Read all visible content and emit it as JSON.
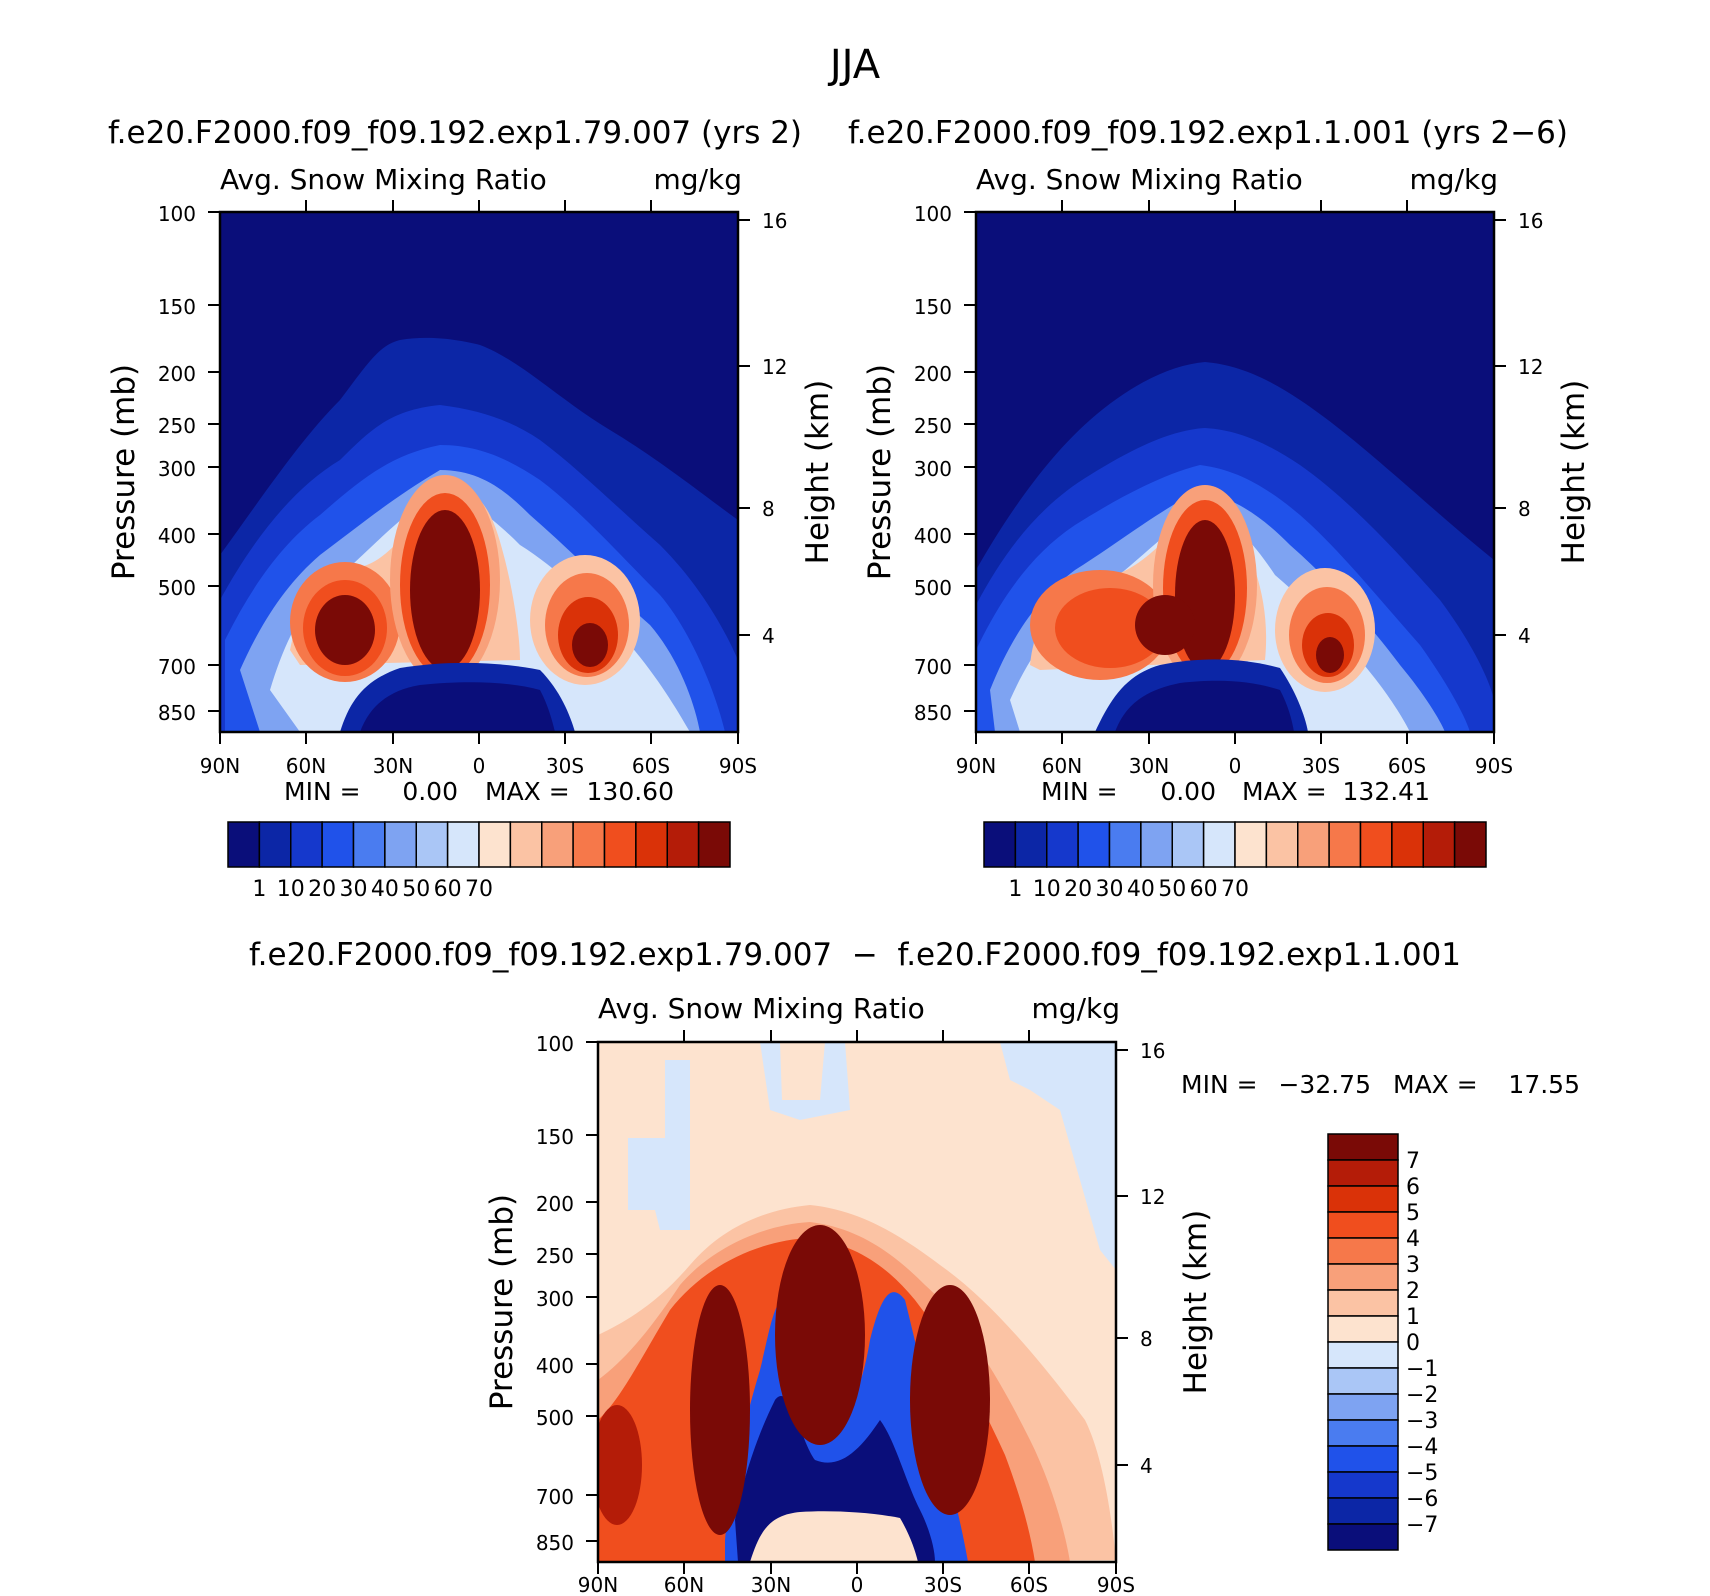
{
  "figure_title": "JJA",
  "diff_title": "f.e20.F2000.f09_f09.192.exp1.79.007  −  f.e20.F2000.f09_f09.192.exp1.1.001",
  "panel_labels": {
    "variable": "Avg. Snow Mixing Ratio",
    "units": "mg/kg",
    "left_axis": "Pressure (mb)",
    "right_axis": "Height (km)"
  },
  "chart_data": [
    {
      "type": "heatmap",
      "title": "f.e20.F2000.f09_f09.192.exp1.79.007 (yrs 2)",
      "subtitle_left": "Avg. Snow Mixing Ratio",
      "subtitle_right": "mg/kg",
      "xlabel": "",
      "ylabel": "Pressure (mb)",
      "ylabel_right": "Height (km)",
      "x_ticks": [
        "90N",
        "60N",
        "30N",
        "0",
        "30S",
        "60S",
        "90S"
      ],
      "y_ticks": [
        "100",
        "150",
        "200",
        "250",
        "300",
        "400",
        "500",
        "700",
        "850"
      ],
      "y_ticks_right": [
        "16",
        "12",
        "8",
        "4"
      ],
      "min_label": "MIN =",
      "min_value": "0.00",
      "max_label": "MAX =",
      "max_value": "130.60",
      "colorbar_labels": [
        "1",
        "10",
        "20",
        "30",
        "40",
        "50",
        "60",
        "70"
      ],
      "colors": [
        "#0a0e7a",
        "#0c26a6",
        "#1538cc",
        "#2052ea",
        "#4a7cf0",
        "#7ea3f2",
        "#aac6f6",
        "#d6e6fb",
        "#fde3cf",
        "#fbc3a4",
        "#f8a07a",
        "#f6784a",
        "#f04e1e",
        "#da3208",
        "#b41c08",
        "#7a0a06"
      ]
    },
    {
      "type": "heatmap",
      "title": "f.e20.F2000.f09_f09.192.exp1.1.001 (yrs 2−6)",
      "subtitle_left": "Avg. Snow Mixing Ratio",
      "subtitle_right": "mg/kg",
      "xlabel": "",
      "ylabel": "Pressure (mb)",
      "ylabel_right": "Height (km)",
      "x_ticks": [
        "90N",
        "60N",
        "30N",
        "0",
        "30S",
        "60S",
        "90S"
      ],
      "y_ticks": [
        "100",
        "150",
        "200",
        "250",
        "300",
        "400",
        "500",
        "700",
        "850"
      ],
      "y_ticks_right": [
        "16",
        "12",
        "8",
        "4"
      ],
      "min_label": "MIN =",
      "min_value": "0.00",
      "max_label": "MAX =",
      "max_value": "132.41",
      "colorbar_labels": [
        "1",
        "10",
        "20",
        "30",
        "40",
        "50",
        "60",
        "70"
      ],
      "colors": [
        "#0a0e7a",
        "#0c26a6",
        "#1538cc",
        "#2052ea",
        "#4a7cf0",
        "#7ea3f2",
        "#aac6f6",
        "#d6e6fb",
        "#fde3cf",
        "#fbc3a4",
        "#f8a07a",
        "#f6784a",
        "#f04e1e",
        "#da3208",
        "#b41c08",
        "#7a0a06"
      ]
    },
    {
      "type": "heatmap",
      "title": "f.e20.F2000.f09_f09.192.exp1.79.007 − f.e20.F2000.f09_f09.192.exp1.1.001",
      "subtitle_left": "Avg. Snow Mixing Ratio",
      "subtitle_right": "mg/kg",
      "xlabel": "",
      "ylabel": "Pressure (mb)",
      "ylabel_right": "Height (km)",
      "x_ticks": [
        "90N",
        "60N",
        "30N",
        "0",
        "30S",
        "60S",
        "90S"
      ],
      "y_ticks": [
        "100",
        "150",
        "200",
        "250",
        "300",
        "400",
        "500",
        "700",
        "850"
      ],
      "y_ticks_right": [
        "16",
        "12",
        "8",
        "4"
      ],
      "min_label": "MIN =",
      "min_value": "−32.75",
      "max_label": "MAX =",
      "max_value": "17.55",
      "colorbar_labels": [
        "7",
        "6",
        "5",
        "4",
        "3",
        "2",
        "1",
        "0",
        "−1",
        "−2",
        "−3",
        "−4",
        "−5",
        "−6",
        "−7"
      ],
      "colors": [
        "#7a0a06",
        "#b41c08",
        "#da3208",
        "#f04e1e",
        "#f6784a",
        "#f8a07a",
        "#fbc3a4",
        "#fde3cf",
        "#d6e6fb",
        "#aac6f6",
        "#7ea3f2",
        "#4a7cf0",
        "#2052ea",
        "#1538cc",
        "#0c26a6",
        "#0a0e7a"
      ]
    }
  ]
}
